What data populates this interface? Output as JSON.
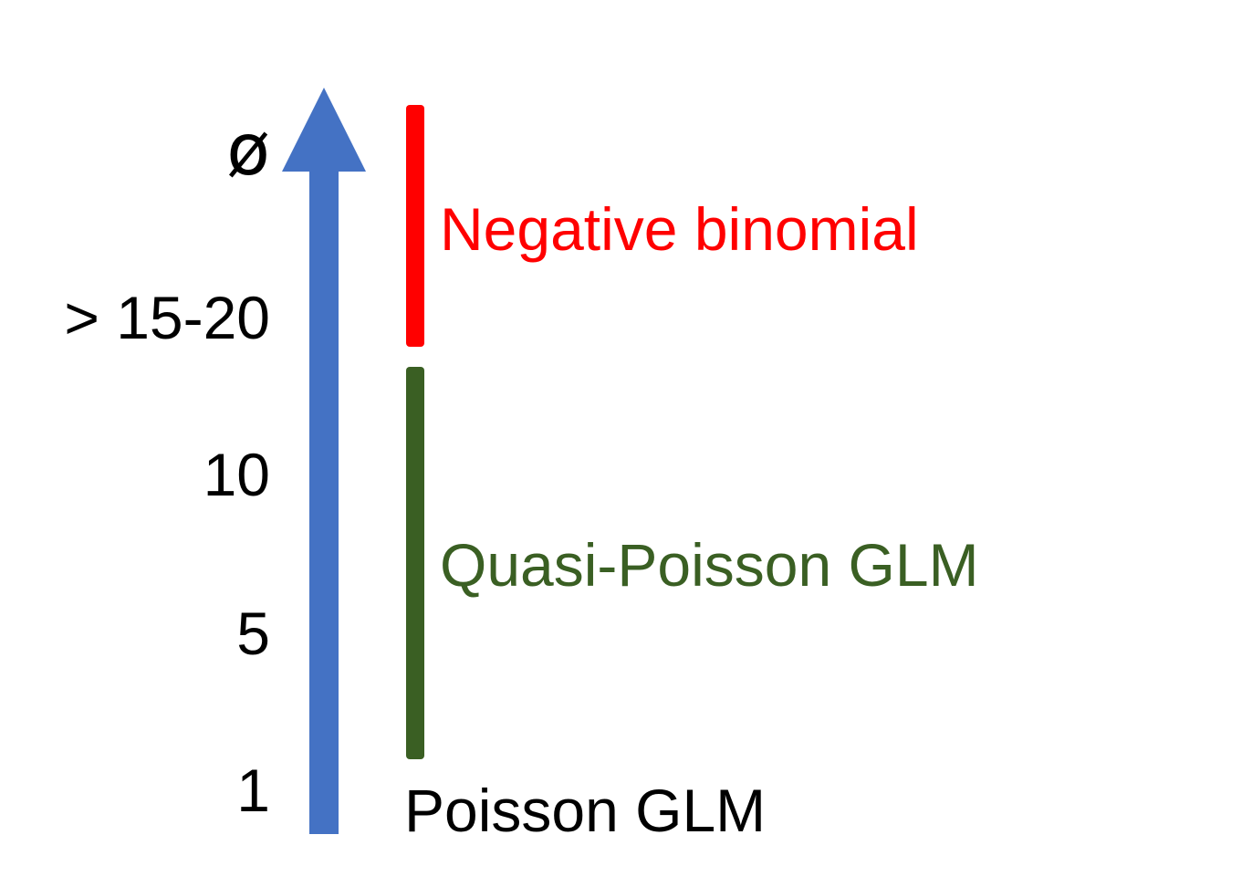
{
  "axis": {
    "symbol": "ø",
    "ticks": [
      "> 15-20",
      "10",
      "5",
      "1"
    ],
    "arrow_color": "#4472C4"
  },
  "models": [
    {
      "label": "Negative binomial",
      "color": "#FF0000"
    },
    {
      "label": "Quasi-Poisson GLM",
      "color": "#3A5F23"
    },
    {
      "label": "Poisson GLM",
      "color": "#000000"
    }
  ]
}
